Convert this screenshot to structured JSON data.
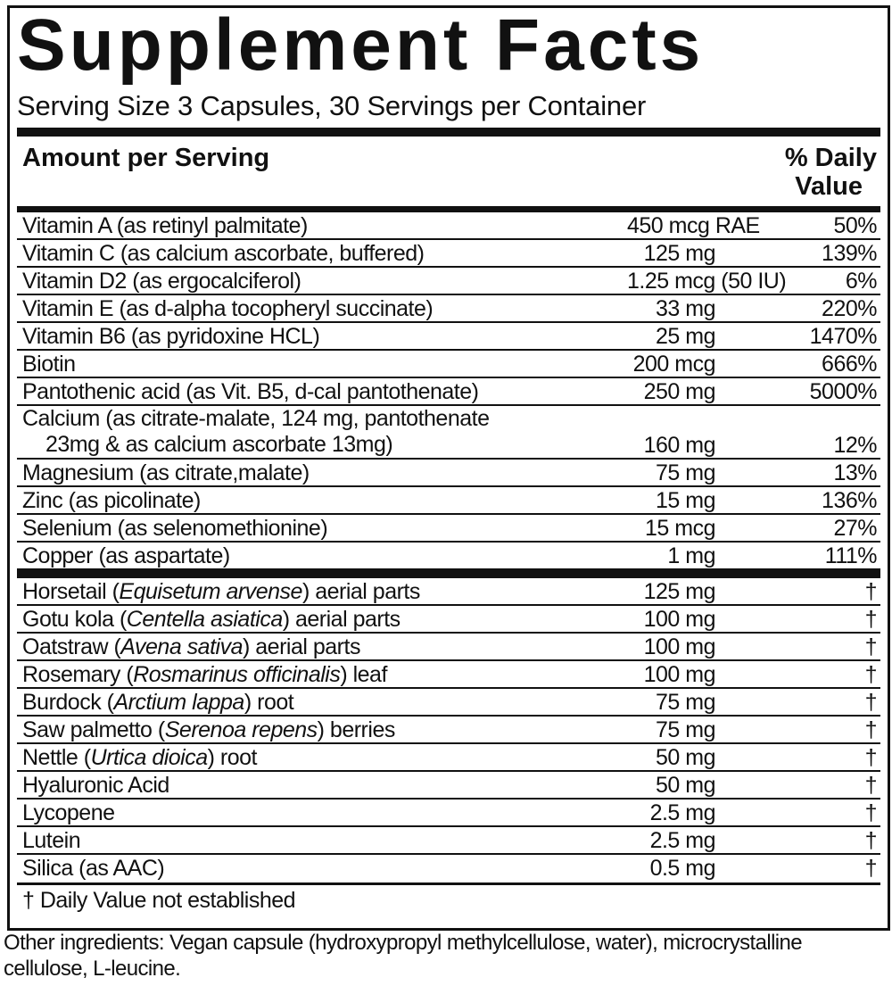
{
  "title": "Supplement Facts",
  "serving": "Serving Size 3 Capsules, 30 Servings per Container",
  "header": {
    "amount": "Amount per Serving",
    "dv_line1": "% Daily",
    "dv_line2": "Value"
  },
  "nutrients": [
    {
      "name": "Vitamin A (as retinyl palmitate)",
      "amount": "450 mcg RAE",
      "dv": "50%"
    },
    {
      "name": "Vitamin C (as calcium ascorbate, buffered)",
      "amount": "125 mg",
      "dv": "139%"
    },
    {
      "name": "Vitamin D2 (as ergocalciferol)",
      "amount": "1.25 mcg (50 IU)",
      "dv": "6%"
    },
    {
      "name": "Vitamin E (as d-alpha tocopheryl succinate)",
      "amount": "33 mg",
      "dv": "220%"
    },
    {
      "name": "Vitamin B6 (as pyridoxine HCL)",
      "amount": "25 mg",
      "dv": "1470%"
    },
    {
      "name": "Biotin",
      "amount": "200 mcg",
      "dv": "666%"
    },
    {
      "name": "Pantothenic acid (as Vit. B5, d-cal pantothenate)",
      "amount": "250 mg",
      "dv": "5000%"
    },
    {
      "name": "Calcium (as citrate-malate, 124 mg, pantothenate",
      "name2": "23mg & as calcium ascorbate 13mg)",
      "amount": "160 mg",
      "dv": "12%"
    },
    {
      "name": "Magnesium (as citrate,malate)",
      "amount": "75 mg",
      "dv": "13%"
    },
    {
      "name": "Zinc (as picolinate)",
      "amount": "15 mg",
      "dv": "136%"
    },
    {
      "name": "Selenium (as selenomethionine)",
      "amount": "15 mcg",
      "dv": "27%"
    },
    {
      "name": "Copper (as aspartate)",
      "amount": "1 mg",
      "dv": "111%"
    }
  ],
  "herbs": [
    {
      "name": "Horsetail (",
      "latin": "Equisetum arvense",
      "rest": ") aerial parts",
      "amount": "125 mg",
      "dv": "†"
    },
    {
      "name": "Gotu kola (",
      "latin": "Centella asiatica",
      "rest": ") aerial parts",
      "amount": "100 mg",
      "dv": "†"
    },
    {
      "name": "Oatstraw (",
      "latin": "Avena sativa",
      "rest": ") aerial parts",
      "amount": "100 mg",
      "dv": "†"
    },
    {
      "name": "Rosemary (",
      "latin": "Rosmarinus officinalis",
      "rest": ") leaf",
      "amount": "100 mg",
      "dv": "†"
    },
    {
      "name": "Burdock (",
      "latin": "Arctium lappa",
      "rest": ") root",
      "amount": "75 mg",
      "dv": "†"
    },
    {
      "name": "Saw palmetto (",
      "latin": "Serenoa repens",
      "rest": ") berries",
      "amount": "75 mg",
      "dv": "†"
    },
    {
      "name": "Nettle (",
      "latin": "Urtica dioica",
      "rest": ") root",
      "amount": "50 mg",
      "dv": "†"
    },
    {
      "name": "Hyaluronic Acid",
      "amount": "50 mg",
      "dv": "†"
    },
    {
      "name": "Lycopene",
      "amount": "2.5 mg",
      "dv": "†"
    },
    {
      "name": "Lutein",
      "amount": "2.5 mg",
      "dv": "†"
    },
    {
      "name": "Silica (as AAC)",
      "amount": "0.5 mg",
      "dv": "†"
    }
  ],
  "footnote": "† Daily Value not established",
  "other_ingredients": "Other ingredients: Vegan capsule (hydroxypropyl methylcellulose, water), microcrystalline cellulose, L-leucine."
}
